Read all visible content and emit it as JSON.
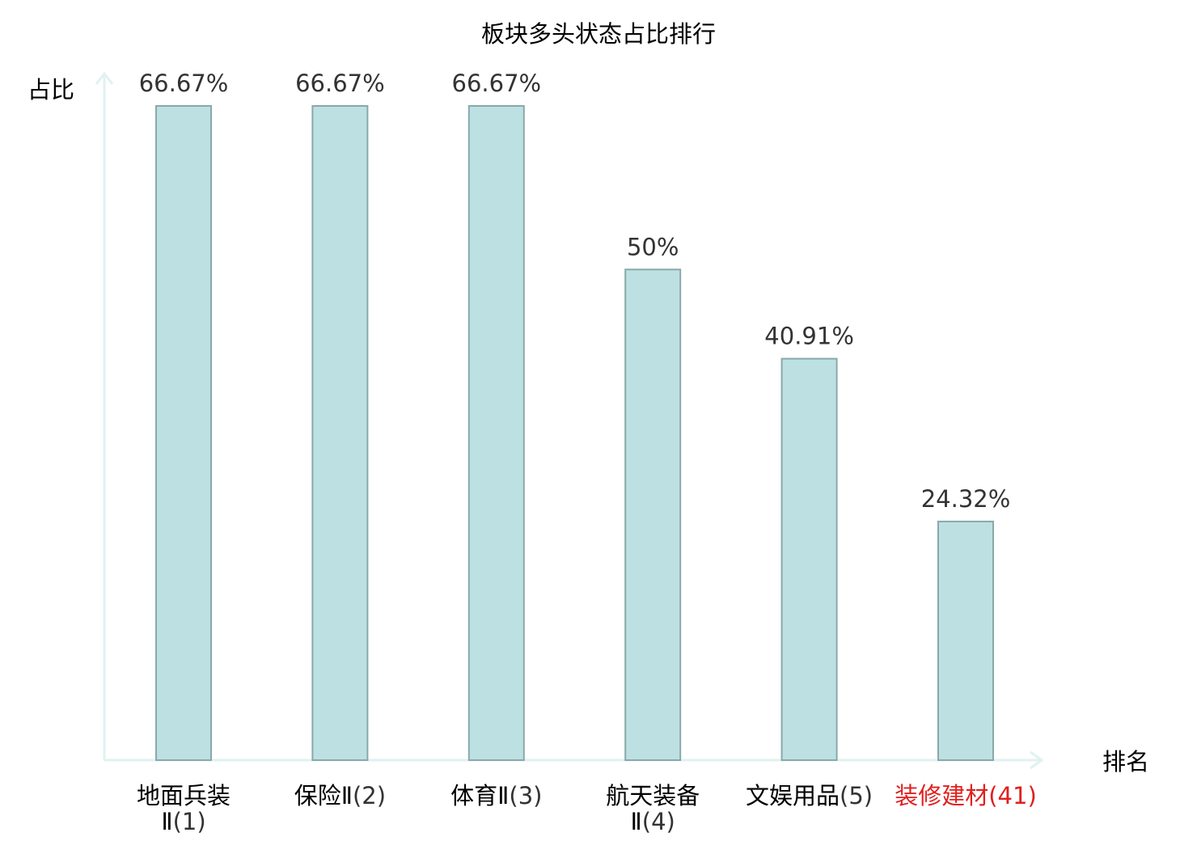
{
  "chart_data": {
    "type": "bar",
    "title": "板块多头状态占比排行",
    "ylabel": "占比",
    "xlabel": "排名",
    "ylim": [
      0,
      66.67
    ],
    "grid": false,
    "categories": [
      {
        "name_lines": [
          "地面兵装",
          "Ⅱ"
        ],
        "rank": "(1)",
        "value": 66.67,
        "label": "66.67%",
        "highlight": false
      },
      {
        "name_lines": [
          "保险Ⅱ"
        ],
        "rank": "(2)",
        "value": 66.67,
        "label": "66.67%",
        "highlight": false
      },
      {
        "name_lines": [
          "体育Ⅱ"
        ],
        "rank": "(3)",
        "value": 66.67,
        "label": "66.67%",
        "highlight": false
      },
      {
        "name_lines": [
          "航天装备",
          "Ⅱ"
        ],
        "rank": "(4)",
        "value": 50,
        "label": "50%",
        "highlight": false
      },
      {
        "name_lines": [
          "文娱用品"
        ],
        "rank": "(5)",
        "value": 40.91,
        "label": "40.91%",
        "highlight": false
      },
      {
        "name_lines": [
          "装修建材"
        ],
        "rank": "(41)",
        "value": 24.32,
        "label": "24.32%",
        "highlight": true
      }
    ],
    "colors": {
      "bar_fill": "#bde1e3",
      "bar_stroke": "#8aa8aa",
      "axis": "#e0f2f0",
      "text": "#333333",
      "label_text": "#000000",
      "highlight": "#e02020"
    }
  }
}
